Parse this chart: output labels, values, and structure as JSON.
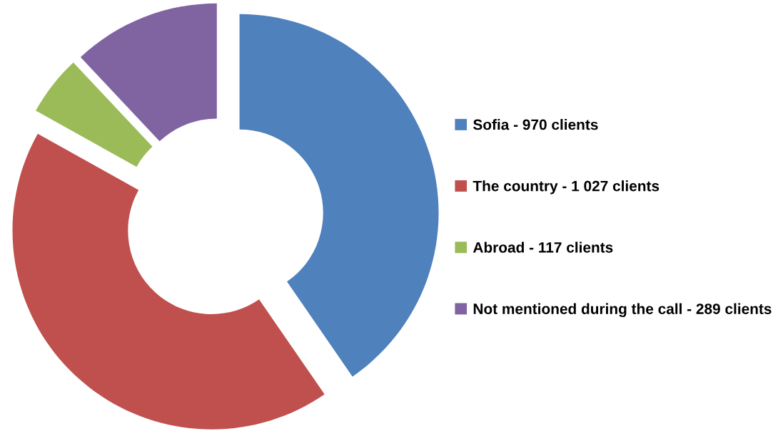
{
  "chart_data": {
    "type": "donut",
    "categories": [
      "Sofia - 970 clients",
      "The country - 1 027 clients",
      "Abroad - 117 clients",
      "Not mentioned during the call - 289 clients"
    ],
    "values": [
      40.4,
      42.7,
      4.9,
      12.0
    ],
    "colors": [
      "#4f81bd",
      "#c0504d",
      "#9bbb59",
      "#8064a2"
    ],
    "legend": "right"
  }
}
